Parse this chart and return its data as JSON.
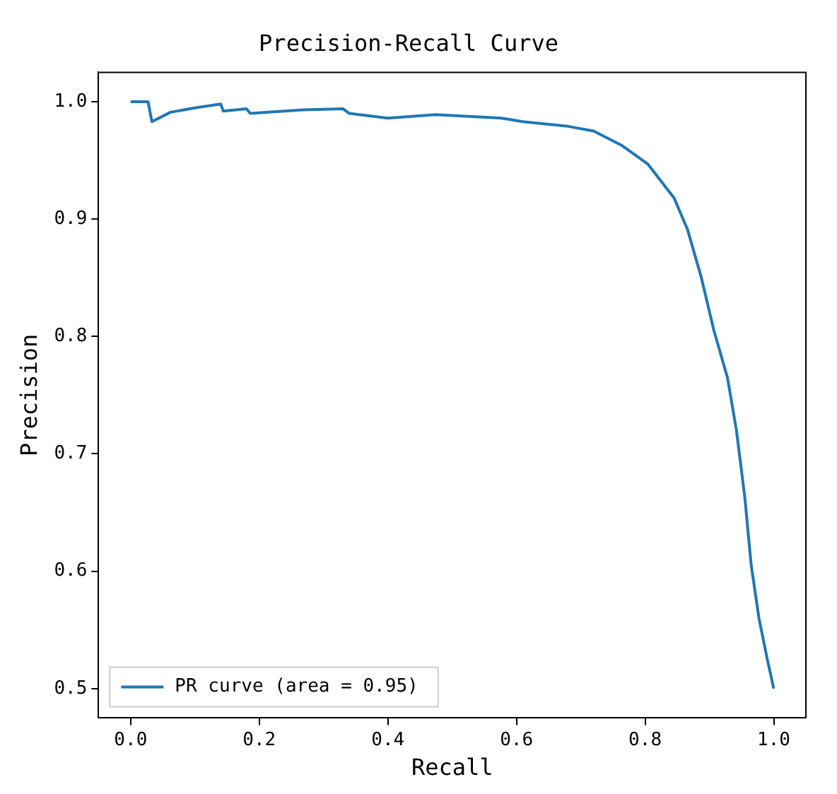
{
  "chart_data": {
    "type": "line",
    "title": "Precision-Recall Curve",
    "xlabel": "Recall",
    "ylabel": "Precision",
    "xlim": [
      -0.05,
      1.05
    ],
    "ylim": [
      0.475,
      1.025
    ],
    "xticks": [
      {
        "value": 0,
        "label": "0.0"
      },
      0.2,
      0.4,
      0.6,
      0.8,
      {
        "value": 1,
        "label": "1.0"
      }
    ],
    "yticks": [
      0.5,
      0.6,
      0.7,
      0.8,
      0.9,
      {
        "value": 1,
        "label": "1.0"
      }
    ],
    "grid": false,
    "legend": "bottom left",
    "marker": "none",
    "line_style": "solid",
    "series": [
      {
        "name": "PR curve (area = 0.95)",
        "color": "#1f77b4",
        "x": [
          0,
          0.027,
          0.033,
          0.062,
          0.103,
          0.14,
          0.144,
          0.18,
          0.186,
          0.268,
          0.33,
          0.34,
          0.4,
          0.474,
          0.577,
          0.61,
          0.68,
          0.72,
          0.763,
          0.804,
          0.845,
          0.866,
          0.887,
          0.907,
          0.928,
          0.942,
          0.955,
          0.965,
          0.977,
          0.99,
          1.0
        ],
        "values": [
          1.0,
          1.0,
          0.983,
          0.991,
          0.995,
          0.998,
          0.992,
          0.994,
          0.99,
          0.993,
          0.994,
          0.99,
          0.986,
          0.989,
          0.986,
          0.983,
          0.979,
          0.975,
          0.963,
          0.947,
          0.918,
          0.891,
          0.851,
          0.805,
          0.765,
          0.72,
          0.663,
          0.605,
          0.56,
          0.525,
          0.5
        ]
      }
    ]
  }
}
